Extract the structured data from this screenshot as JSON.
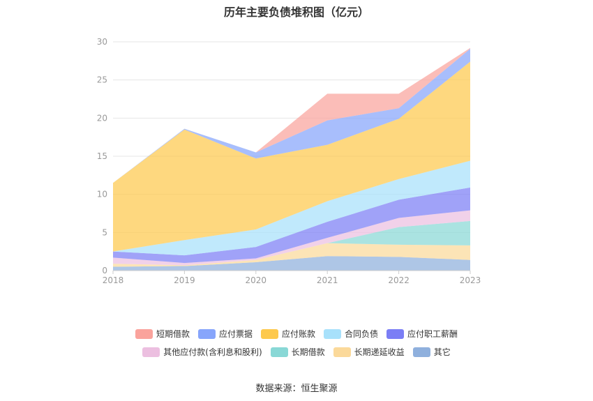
{
  "title": "历年主要负债堆积图（亿元）",
  "source": "数据来源：恒生聚源",
  "chart_data": {
    "type": "area",
    "stacked": true,
    "categories": [
      "2018",
      "2019",
      "2020",
      "2021",
      "2022",
      "2023"
    ],
    "ylim": [
      0,
      30
    ],
    "yticks": [
      "0",
      "5",
      "10",
      "15",
      "20",
      "25",
      "30"
    ],
    "grid": true,
    "legend_position": "bottom",
    "series": [
      {
        "name": "其它",
        "color": "#8fb0dd",
        "values": [
          0.5,
          0.6,
          1.1,
          1.9,
          1.8,
          1.4
        ]
      },
      {
        "name": "长期递延收益",
        "color": "#fbd99a",
        "values": [
          0.4,
          0.1,
          0.3,
          1.7,
          1.6,
          1.9
        ]
      },
      {
        "name": "长期借款",
        "color": "#89d8d6",
        "values": [
          0.0,
          0.0,
          0.0,
          0.0,
          2.3,
          3.2
        ]
      },
      {
        "name": "其他应付款(含利息和股利)",
        "color": "#ecbfe0",
        "values": [
          0.8,
          0.3,
          0.2,
          0.7,
          1.2,
          1.4
        ]
      },
      {
        "name": "应付职工薪酬",
        "color": "#7b7ef5",
        "values": [
          0.8,
          1.0,
          1.5,
          2.1,
          2.4,
          3.0
        ]
      },
      {
        "name": "合同负债",
        "color": "#a8e1fb",
        "values": [
          0.0,
          2.0,
          2.3,
          2.7,
          2.7,
          3.5
        ]
      },
      {
        "name": "应付账款",
        "color": "#fdc94d",
        "values": [
          9.0,
          14.5,
          9.3,
          7.4,
          7.9,
          13.0
        ]
      },
      {
        "name": "应付票据",
        "color": "#87a5fb",
        "values": [
          0.0,
          0.1,
          0.8,
          3.2,
          1.4,
          1.7
        ]
      },
      {
        "name": "短期借款",
        "color": "#faa39c",
        "values": [
          0.0,
          0.0,
          0.0,
          3.5,
          1.9,
          0.1
        ]
      }
    ],
    "legend_order": [
      "短期借款",
      "应付票据",
      "应付账款",
      "合同负债",
      "应付职工薪酬",
      "其他应付款(含利息和股利)",
      "长期借款",
      "长期递延收益",
      "其它"
    ]
  }
}
